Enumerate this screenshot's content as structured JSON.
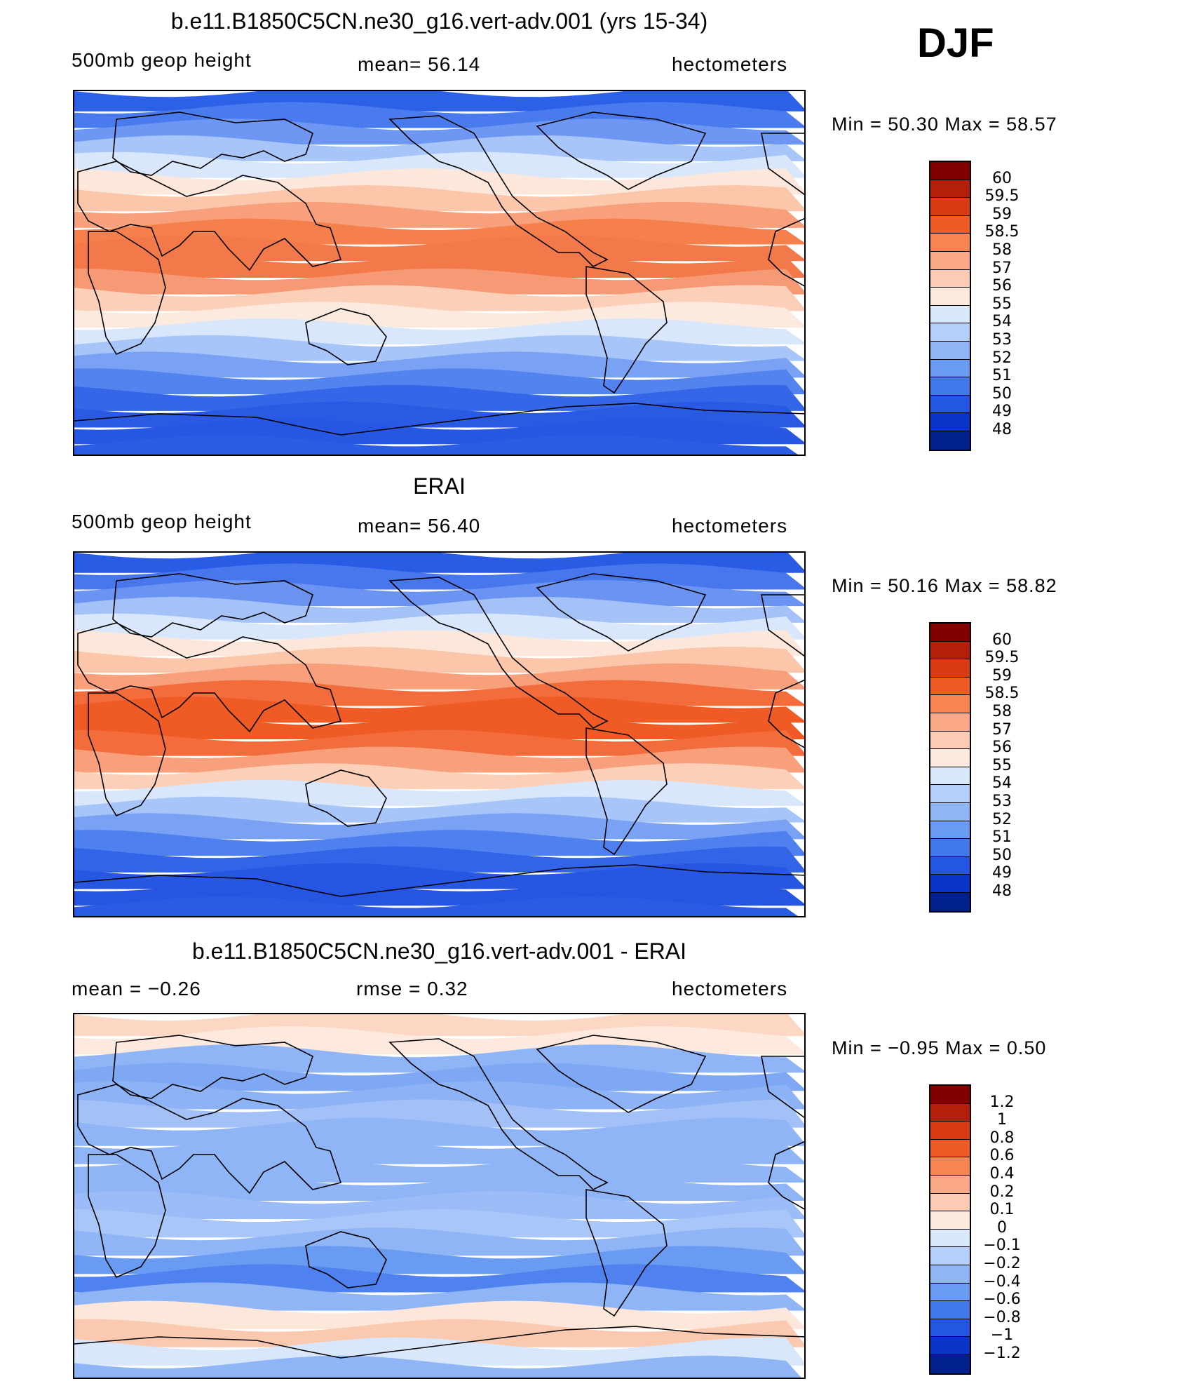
{
  "djf_label": "DJF",
  "panels": [
    {
      "id": "model",
      "title": "b.e11.B1850C5CN.ne30_g16.vert-adv.001 (yrs 15-34)",
      "left_label": "500mb  geop  height",
      "center_label": "mean=   56.14",
      "right_label": "hectometers",
      "minmax": "Min  =    50.30  Max  =     58.57",
      "palette": "abs",
      "colorbar_labels": [
        "60",
        "59.5",
        "59",
        "58.5",
        "58",
        "57",
        "56",
        "55",
        "54",
        "53",
        "52",
        "51",
        "50",
        "49",
        "48"
      ]
    },
    {
      "id": "obs",
      "title": "ERAI",
      "left_label": "500mb  geop  height",
      "center_label": "mean=   56.40",
      "right_label": "hectometers",
      "minmax": "Min  =    50.16  Max  =     58.82",
      "palette": "abs",
      "colorbar_labels": [
        "60",
        "59.5",
        "59",
        "58.5",
        "58",
        "57",
        "56",
        "55",
        "54",
        "53",
        "52",
        "51",
        "50",
        "49",
        "48"
      ]
    },
    {
      "id": "diff",
      "title": "b.e11.B1850C5CN.ne30_g16.vert-adv.001 - ERAI",
      "left_label": "mean  =    −0.26",
      "center_label": "rmse  =     0.32",
      "right_label": "hectometers",
      "minmax": "Min  =   −0.95  Max  =      0.50",
      "palette": "diff",
      "colorbar_labels": [
        "1.2",
        "1",
        "0.8",
        "0.6",
        "0.4",
        "0.2",
        "0.1",
        "0",
        "−0.1",
        "−0.2",
        "−0.4",
        "−0.6",
        "−0.8",
        "−1",
        "−1.2"
      ]
    }
  ],
  "colorbar_colors": [
    "#800000",
    "#b51e0a",
    "#dc3a10",
    "#ef5a25",
    "#f8844f",
    "#fba889",
    "#fccbb3",
    "#fdeadf",
    "#d9e8fb",
    "#b4cff9",
    "#8fb5f6",
    "#6a9bf2",
    "#4179ed",
    "#2356e2",
    "#0a33c8",
    "#00218c"
  ],
  "abs_bands": [
    "#2c60e6",
    "#4a7bee",
    "#6d97f2",
    "#a7c5f8",
    "#d8e7fb",
    "#fde7da",
    "#fbc6aa",
    "#f8a07c",
    "#f5804c",
    "#f4794a",
    "#f4794a",
    "#f59a74",
    "#fcd0b8",
    "#fdeade",
    "#d8e7fb",
    "#a7c5f8",
    "#7aa2f4",
    "#5283ef",
    "#3566e8",
    "#2a5ae4",
    "#2756e3",
    "#2b5ce4"
  ],
  "obs_bands": [
    "#2a5be5",
    "#4877ed",
    "#6b94f2",
    "#a4c2f7",
    "#d8e7fb",
    "#fde7da",
    "#fbc6aa",
    "#f8a07c",
    "#f26c3c",
    "#ef5a25",
    "#ef5a25",
    "#f26c3c",
    "#f8a07c",
    "#fcd0b8",
    "#d8e7fb",
    "#a7c5f8",
    "#7aa2f4",
    "#4f80ef",
    "#3364e8",
    "#2756e3",
    "#2555e2",
    "#2a5be5"
  ],
  "diff_bands": [
    "#fcd8c4",
    "#fde9de",
    "#8fb5f6",
    "#7ea8f4",
    "#8db3f6",
    "#a3c1f7",
    "#8fb5f6",
    "#8fb5f6",
    "#8fb5f6",
    "#8fb5f6",
    "#9bbcf6",
    "#a9c6f8",
    "#8fb5f6",
    "#6a9bf2",
    "#4f82ef",
    "#8fb5f6",
    "#fde7da",
    "#fbc9b0",
    "#d8e7fb",
    "#8fb5f6"
  ]
}
